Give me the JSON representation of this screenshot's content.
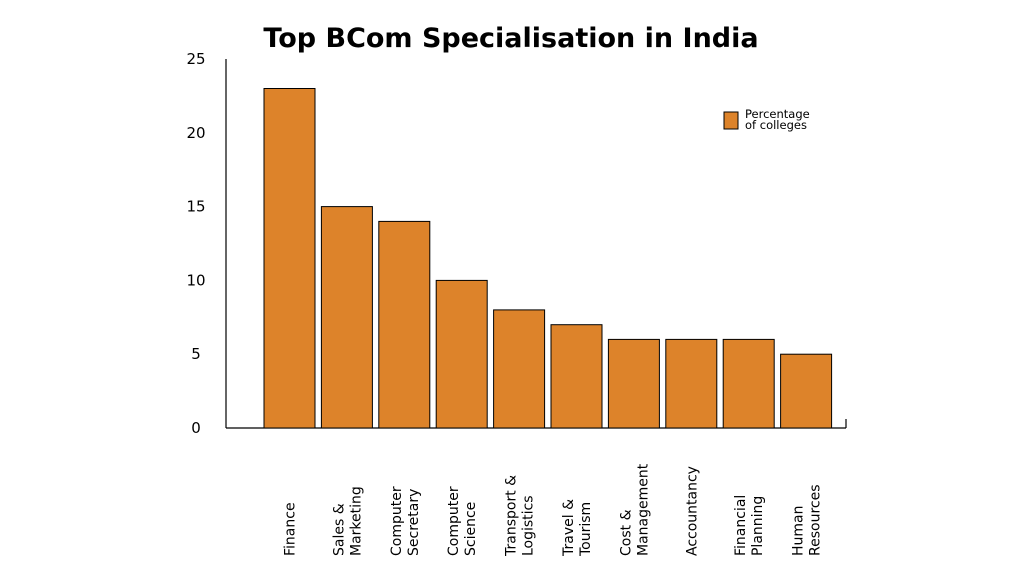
{
  "chart_data": {
    "type": "bar",
    "title": "Top BCom Specialisation in India",
    "xlabel": "",
    "ylabel": "",
    "categories": [
      [
        "Finance"
      ],
      [
        "Sales &",
        "Marketing"
      ],
      [
        "Computer",
        "Secretary"
      ],
      [
        "Computer",
        "Science"
      ],
      [
        "Transport &",
        "Logistics"
      ],
      [
        "Travel &",
        "Tourism"
      ],
      [
        "Cost &",
        "Management"
      ],
      [
        "Accountancy"
      ],
      [
        "Financial",
        "Planning"
      ],
      [
        "Human",
        "Resources"
      ]
    ],
    "series": [
      {
        "name": [
          "Percentage",
          "of colleges"
        ],
        "values": [
          23,
          15,
          14,
          10,
          8,
          7,
          6,
          6,
          6,
          5
        ]
      }
    ],
    "ylim": [
      0,
      25
    ],
    "yticks": [
      0,
      5,
      10,
      15,
      20,
      25
    ],
    "grid": false,
    "legend_position": "top-right",
    "bar_color": "#DD832A",
    "bar_stroke": "#000000"
  }
}
